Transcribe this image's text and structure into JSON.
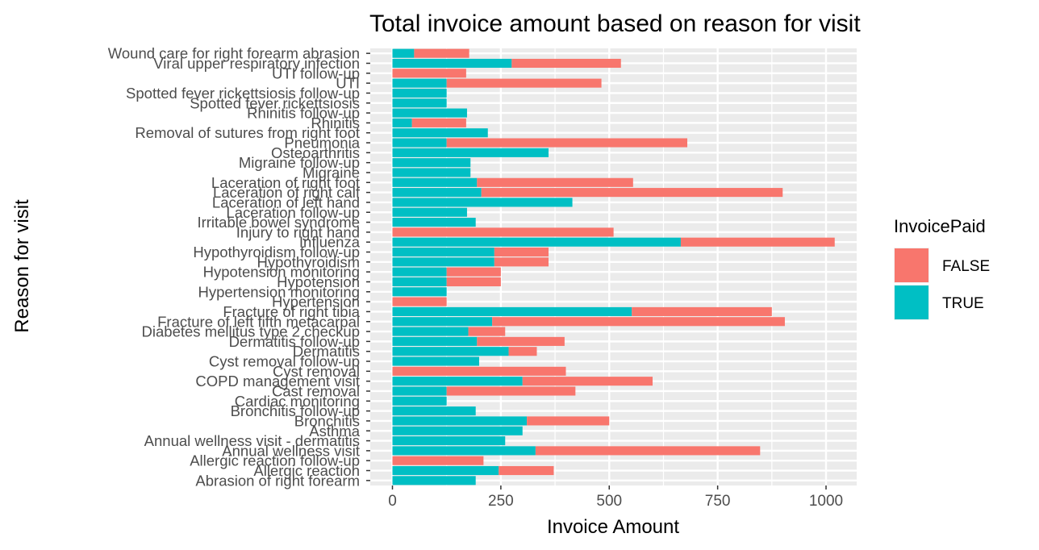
{
  "chart_data": {
    "type": "bar",
    "orientation": "horizontal",
    "stacked": true,
    "title": "Total invoice amount based on reason for visit",
    "xlabel": "Invoice Amount",
    "ylabel": "Reason for visit",
    "xlim": [
      0,
      1075
    ],
    "xticks": [
      0,
      250,
      500,
      750,
      1000
    ],
    "xtick_labels": [
      "0",
      "250",
      "500",
      "750",
      "1000"
    ],
    "grid": true,
    "legend": {
      "title": "InvoicePaid",
      "position": "right"
    },
    "categories": [
      "Abrasion of right forearm",
      "Allergic reaction",
      "Allergic reaction follow-up",
      "Annual wellness visit",
      "Annual wellness visit - dermatitis",
      "Asthma",
      "Bronchitis",
      "Bronchitis follow-up",
      "Cardiac monitoring",
      "Cast removal",
      "COPD management visit",
      "Cyst removal",
      "Cyst removal follow-up",
      "Dermatitis",
      "Dermatitis follow-up",
      "Diabetes mellitus type 2 checkup",
      "Fracture of left fifth metacarpal",
      "Fracture of right tibia",
      "Hypertension",
      "Hypertension monitoring",
      "Hypotension",
      "Hypotension monitoring",
      "Hypothyroidism",
      "Hypothyroidism follow-up",
      "Influenza",
      "Injury to right hand",
      "Irritable bowel syndrome",
      "Laceration follow-up",
      "Laceration of left hand",
      "Laceration of right calf",
      "Laceration of right foot",
      "Migraine",
      "Migraine follow-up",
      "Osteoarthritis",
      "Pneumonia",
      "Removal of sutures from right foot",
      "Rhinitis",
      "Rhinitis follow-up",
      "Spotted fever rickettsiosis",
      "Spotted fever rickettsiosis follow-up",
      "UTI",
      "UTI follow-up",
      "Viral upper respiratory infection",
      "Wound care for right forearm abrasion"
    ],
    "series": [
      {
        "name": "TRUE",
        "color": "#00BFC4",
        "values": [
          192,
          245,
          0,
          330,
          260,
          300,
          310,
          192,
          125,
          125,
          300,
          0,
          200,
          268,
          195,
          175,
          230,
          552,
          0,
          125,
          125,
          125,
          235,
          235,
          665,
          0,
          192,
          172,
          415,
          205,
          195,
          180,
          180,
          360,
          125,
          220,
          45,
          172,
          125,
          125,
          125,
          0,
          275,
          50
        ]
      },
      {
        "name": "FALSE",
        "color": "#F8766D",
        "values": [
          0,
          127,
          210,
          518,
          0,
          0,
          190,
          0,
          0,
          297,
          300,
          400,
          0,
          65,
          202,
          85,
          675,
          323,
          125,
          0,
          125,
          125,
          125,
          125,
          355,
          510,
          0,
          0,
          0,
          695,
          360,
          0,
          0,
          0,
          555,
          0,
          125,
          0,
          0,
          0,
          357,
          170,
          252,
          127
        ]
      }
    ]
  }
}
